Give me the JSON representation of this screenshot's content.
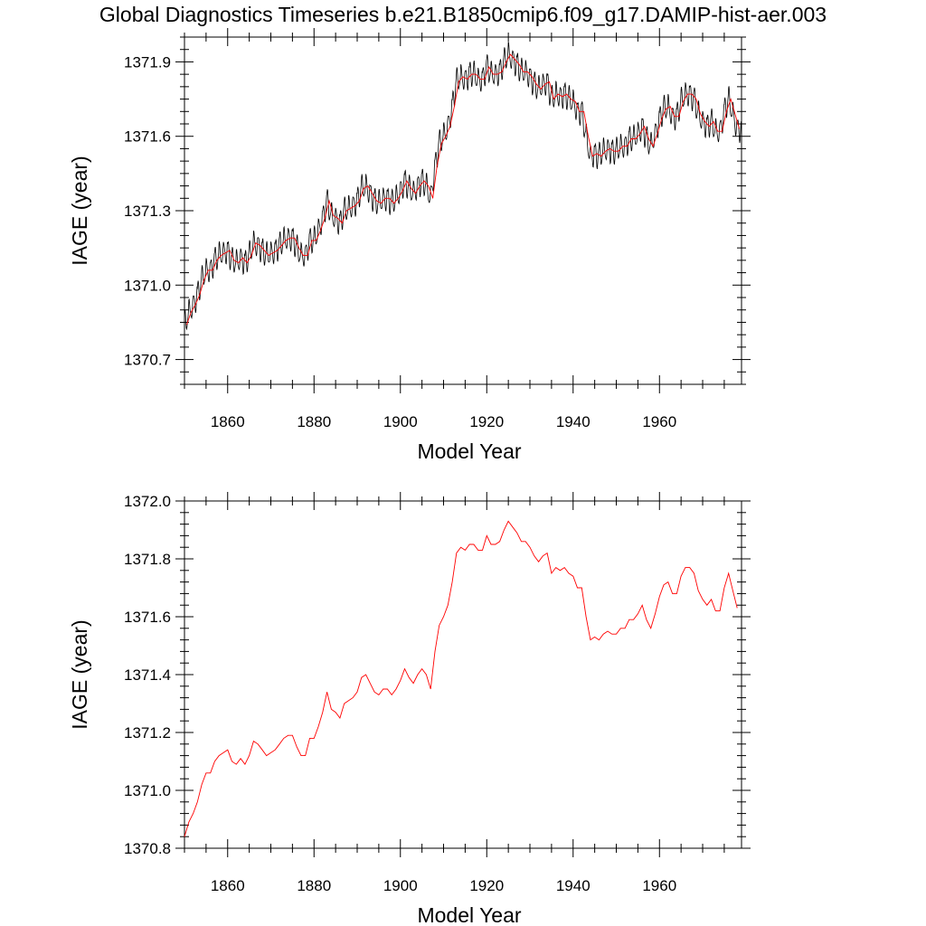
{
  "title": "Global Diagnostics Timeseries b.e21.B1850cmip6.f09_g17.DAMIP-hist-aer.003",
  "chart_data": [
    {
      "type": "line",
      "xlabel": "Model Year",
      "ylabel": "IAGE (year)",
      "xlim": [
        1850,
        1979
      ],
      "ylim": [
        1370.6,
        1372.0
      ],
      "xticks": [
        1860,
        1880,
        1900,
        1920,
        1940,
        1960
      ],
      "yticks": [
        "1370.7",
        "1371.0",
        "1371.3",
        "1371.6",
        "1371.9"
      ],
      "grid": false,
      "series": [
        {
          "color": "#000000",
          "style": "monthly values (annual cycle amplitude ~0.05 around annual mean)",
          "values": []
        },
        {
          "color": "#ff0000",
          "style": "annual mean",
          "values": []
        }
      ]
    },
    {
      "type": "line",
      "xlabel": "Model Year",
      "ylabel": "IAGE (year)",
      "xlim": [
        1850,
        1979
      ],
      "ylim": [
        1370.8,
        1372.0
      ],
      "xticks": [
        1860,
        1880,
        1900,
        1920,
        1940,
        1960
      ],
      "yticks": [
        "1370.8",
        "1371.0",
        "1371.2",
        "1371.4",
        "1371.6",
        "1371.8",
        "1372.0"
      ],
      "grid": false,
      "series": [
        {
          "color": "#ff0000",
          "style": "annual mean",
          "x": [
            1850,
            1851,
            1852,
            1853,
            1854,
            1855,
            1856,
            1857,
            1858,
            1859,
            1860,
            1861,
            1862,
            1863,
            1864,
            1865,
            1866,
            1867,
            1868,
            1869,
            1870,
            1871,
            1872,
            1873,
            1874,
            1875,
            1876,
            1877,
            1878,
            1879,
            1880,
            1881,
            1882,
            1883,
            1884,
            1885,
            1886,
            1887,
            1888,
            1889,
            1890,
            1891,
            1892,
            1893,
            1894,
            1895,
            1896,
            1897,
            1898,
            1899,
            1900,
            1901,
            1902,
            1903,
            1904,
            1905,
            1906,
            1907,
            1908,
            1909,
            1910,
            1911,
            1912,
            1913,
            1914,
            1915,
            1916,
            1917,
            1918,
            1919,
            1920,
            1921,
            1922,
            1923,
            1924,
            1925,
            1926,
            1927,
            1928,
            1929,
            1930,
            1931,
            1932,
            1933,
            1934,
            1935,
            1936,
            1937,
            1938,
            1939,
            1940,
            1941,
            1942,
            1943,
            1944,
            1945,
            1946,
            1947,
            1948,
            1949,
            1950,
            1951,
            1952,
            1953,
            1954,
            1955,
            1956,
            1957,
            1958,
            1959,
            1960,
            1961,
            1962,
            1963,
            1964,
            1965,
            1966,
            1967,
            1968,
            1969,
            1970,
            1971,
            1972,
            1973,
            1974,
            1975,
            1976,
            1977,
            1978
          ],
          "values": [
            1370.84,
            1370.89,
            1370.92,
            1370.96,
            1371.02,
            1371.06,
            1371.06,
            1371.1,
            1371.12,
            1371.13,
            1371.14,
            1371.1,
            1371.09,
            1371.11,
            1371.09,
            1371.12,
            1371.17,
            1371.16,
            1371.14,
            1371.12,
            1371.13,
            1371.14,
            1371.16,
            1371.18,
            1371.19,
            1371.19,
            1371.15,
            1371.12,
            1371.12,
            1371.18,
            1371.18,
            1371.22,
            1371.27,
            1371.34,
            1371.28,
            1371.27,
            1371.25,
            1371.3,
            1371.31,
            1371.32,
            1371.34,
            1371.39,
            1371.4,
            1371.37,
            1371.34,
            1371.33,
            1371.35,
            1371.35,
            1371.33,
            1371.35,
            1371.38,
            1371.42,
            1371.39,
            1371.37,
            1371.4,
            1371.42,
            1371.4,
            1371.35,
            1371.48,
            1371.57,
            1371.6,
            1371.64,
            1371.72,
            1371.82,
            1371.84,
            1371.83,
            1371.85,
            1371.85,
            1371.83,
            1371.83,
            1371.88,
            1371.85,
            1371.85,
            1371.86,
            1371.9,
            1371.93,
            1371.91,
            1371.89,
            1371.86,
            1371.86,
            1371.84,
            1371.81,
            1371.79,
            1371.81,
            1371.82,
            1371.75,
            1371.77,
            1371.76,
            1371.77,
            1371.75,
            1371.74,
            1371.7,
            1371.7,
            1371.6,
            1371.52,
            1371.53,
            1371.52,
            1371.54,
            1371.55,
            1371.54,
            1371.54,
            1371.56,
            1371.56,
            1371.59,
            1371.59,
            1371.61,
            1371.64,
            1371.59,
            1371.56,
            1371.61,
            1371.67,
            1371.71,
            1371.72,
            1371.68,
            1371.68,
            1371.74,
            1371.77,
            1371.77,
            1371.75,
            1371.69,
            1371.66,
            1371.64,
            1371.66,
            1371.62,
            1371.62,
            1371.7,
            1371.75,
            1371.69,
            1371.63
          ]
        }
      ]
    }
  ]
}
